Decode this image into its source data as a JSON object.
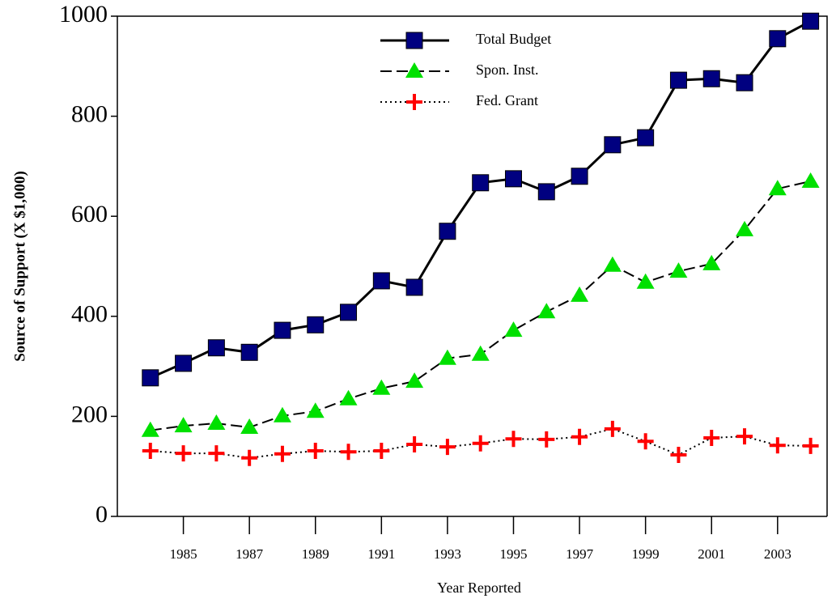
{
  "chart_data": {
    "type": "line",
    "xlabel": "Year Reported",
    "ylabel": "Source of Support (X $1,000)",
    "x": [
      1984,
      1985,
      1986,
      1987,
      1988,
      1989,
      1990,
      1991,
      1992,
      1993,
      1994,
      1995,
      1996,
      1997,
      1998,
      1999,
      2000,
      2001,
      2002,
      2003,
      2004
    ],
    "series": [
      {
        "name": "Total Budget",
        "color": "#000080",
        "linestyle": "solid",
        "marker": "square",
        "values": [
          277,
          306,
          337,
          328,
          372,
          383,
          408,
          471,
          458,
          570,
          667,
          675,
          649,
          680,
          743,
          757,
          872,
          875,
          867,
          955,
          990
        ]
      },
      {
        "name": "Spon. Inst.",
        "color": "#00e000",
        "linestyle": "dashed",
        "marker": "triangle",
        "values": [
          172,
          181,
          186,
          178,
          201,
          210,
          235,
          256,
          270,
          316,
          324,
          372,
          409,
          442,
          502,
          468,
          490,
          505,
          573,
          655,
          670
        ]
      },
      {
        "name": "Fed. Grant",
        "color": "#ff0000",
        "linestyle": "dotted",
        "marker": "plus",
        "values": [
          131,
          126,
          126,
          117,
          125,
          131,
          129,
          131,
          144,
          139,
          146,
          155,
          154,
          159,
          175,
          150,
          123,
          157,
          160,
          142,
          141
        ]
      }
    ],
    "xlim": [
      1983,
      2004.5
    ],
    "xticks": [
      1985,
      1987,
      1989,
      1991,
      1993,
      1995,
      1997,
      1999,
      2001,
      2003
    ],
    "ylim": [
      0,
      1000
    ],
    "yticks": [
      0,
      200,
      400,
      600,
      800,
      1000
    ],
    "legend": "upper center"
  }
}
